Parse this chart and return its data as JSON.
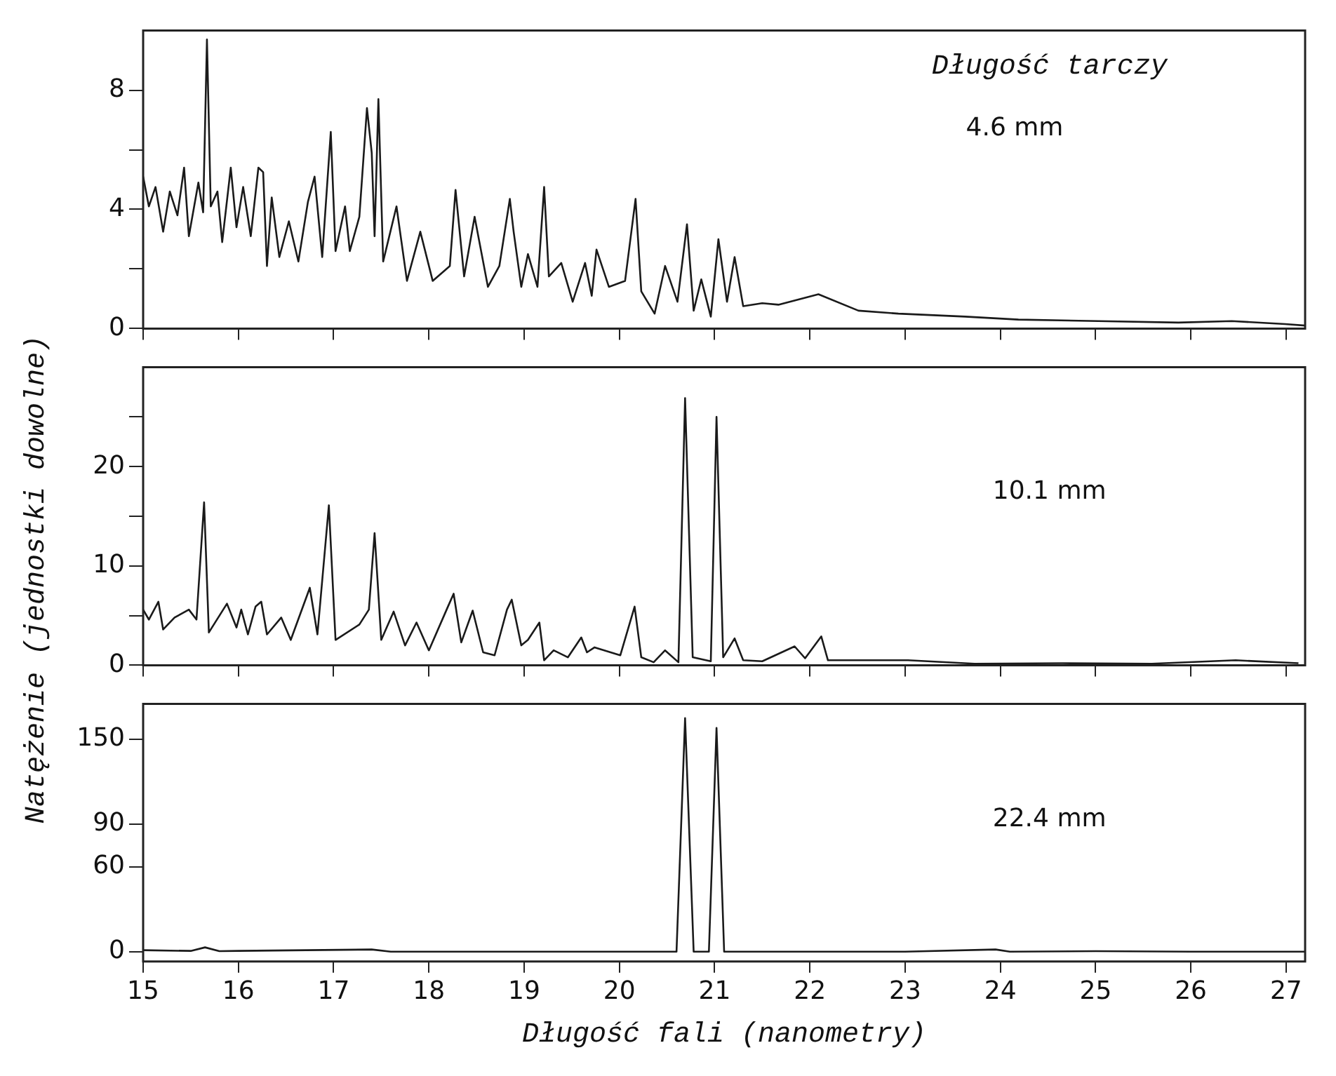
{
  "chart_data": [
    {
      "type": "line",
      "ylabel": "Natężenie (jednostki dowolne)",
      "annotations": [
        "Długość tarczy",
        "4.6 mm"
      ],
      "color": "#1a1a1a",
      "marker": "none",
      "grid": false,
      "tick_labels": "y",
      "xlim": [
        15,
        27.2
      ],
      "xticks": [
        15,
        16,
        17,
        18,
        19,
        20,
        21,
        22,
        23,
        24,
        25,
        26,
        27
      ],
      "ylim": [
        0,
        10
      ],
      "yticks": [
        0,
        {
          "value": 2,
          "label": null
        },
        4,
        {
          "value": 6,
          "label": null
        },
        8
      ],
      "x": [
        15.0,
        15.06,
        15.13,
        15.21,
        15.28,
        15.36,
        15.43,
        15.48,
        15.58,
        15.63,
        15.67,
        15.71,
        15.78,
        15.83,
        15.92,
        15.98,
        16.05,
        16.13,
        16.21,
        16.26,
        16.3,
        16.35,
        16.43,
        16.53,
        16.63,
        16.73,
        16.8,
        16.88,
        16.97,
        17.02,
        17.12,
        17.17,
        17.27,
        17.35,
        17.4,
        17.43,
        17.47,
        17.52,
        17.66,
        17.77,
        17.91,
        18.04,
        18.22,
        18.28,
        18.37,
        18.48,
        18.62,
        18.74,
        18.85,
        18.89,
        18.97,
        19.04,
        19.14,
        19.21,
        19.26,
        19.39,
        19.51,
        19.64,
        19.71,
        19.76,
        19.89,
        20.06,
        20.17,
        20.23,
        20.37,
        20.48,
        20.61,
        20.71,
        20.78,
        20.86,
        20.96,
        21.04,
        21.13,
        21.21,
        21.3,
        21.5,
        21.67,
        22.09,
        22.51,
        22.93,
        23.63,
        24.19,
        25.03,
        25.87,
        26.43,
        26.99,
        27.2
      ],
      "values": [
        5.1,
        4.1,
        4.75,
        3.25,
        4.6,
        3.8,
        5.4,
        3.1,
        4.9,
        3.9,
        9.7,
        4.1,
        4.6,
        2.9,
        5.4,
        3.4,
        4.75,
        3.1,
        5.4,
        5.25,
        2.1,
        4.4,
        2.4,
        3.6,
        2.25,
        4.25,
        5.1,
        2.4,
        6.6,
        2.6,
        4.1,
        2.6,
        3.75,
        7.4,
        5.9,
        3.1,
        7.7,
        2.25,
        4.1,
        1.6,
        3.25,
        1.6,
        2.1,
        4.65,
        1.75,
        3.75,
        1.4,
        2.1,
        4.35,
        3.25,
        1.4,
        2.5,
        1.4,
        4.75,
        1.75,
        2.2,
        0.9,
        2.2,
        1.1,
        2.65,
        1.4,
        1.6,
        4.35,
        1.25,
        0.5,
        2.1,
        0.9,
        3.5,
        0.6,
        1.65,
        0.4,
        3.0,
        0.9,
        2.4,
        0.75,
        0.85,
        0.8,
        1.15,
        0.6,
        0.5,
        0.4,
        0.3,
        0.25,
        0.2,
        0.25,
        0.15,
        0.1
      ]
    },
    {
      "type": "line",
      "annotations": [
        "10.1 mm"
      ],
      "color": "#1a1a1a",
      "marker": "none",
      "grid": false,
      "tick_labels": "y",
      "xlim": [
        15,
        27.2
      ],
      "xticks": [
        15,
        16,
        17,
        18,
        19,
        20,
        21,
        22,
        23,
        24,
        25,
        26,
        27
      ],
      "ylim": [
        0,
        30
      ],
      "yticks": [
        0,
        {
          "value": 5,
          "label": null
        },
        10,
        {
          "value": 15,
          "label": null
        },
        20,
        {
          "value": 25,
          "label": null
        }
      ],
      "x": [
        15.0,
        15.06,
        15.16,
        15.21,
        15.33,
        15.48,
        15.56,
        15.64,
        15.69,
        15.88,
        15.98,
        16.03,
        16.1,
        16.18,
        16.24,
        16.3,
        16.45,
        16.55,
        16.75,
        16.83,
        16.95,
        17.02,
        17.27,
        17.37,
        17.43,
        17.5,
        17.63,
        17.75,
        17.87,
        18.0,
        18.2,
        18.26,
        18.34,
        18.46,
        18.57,
        18.69,
        18.82,
        18.87,
        18.97,
        19.04,
        19.16,
        19.21,
        19.31,
        19.46,
        19.6,
        19.66,
        19.74,
        20.01,
        20.16,
        20.23,
        20.36,
        20.48,
        20.62,
        20.69,
        20.77,
        20.96,
        21.02,
        21.09,
        21.21,
        21.3,
        21.5,
        21.84,
        21.95,
        22.12,
        22.19,
        23.03,
        23.73,
        24.65,
        25.59,
        26.47,
        27.13
      ],
      "values": [
        5.6,
        4.6,
        6.4,
        3.6,
        4.8,
        5.6,
        4.6,
        16.4,
        3.3,
        6.2,
        3.8,
        5.6,
        3.1,
        5.9,
        6.4,
        3.1,
        4.8,
        2.55,
        7.8,
        3.1,
        16.1,
        2.55,
        4.1,
        5.6,
        13.3,
        2.55,
        5.4,
        2.0,
        4.3,
        1.5,
        5.9,
        7.2,
        2.3,
        5.5,
        1.3,
        1.0,
        5.6,
        6.6,
        2.0,
        2.55,
        4.3,
        0.5,
        1.5,
        0.8,
        2.8,
        1.3,
        1.8,
        1.0,
        5.9,
        0.8,
        0.3,
        1.5,
        0.3,
        26.9,
        0.8,
        0.4,
        25.0,
        0.8,
        2.7,
        0.5,
        0.4,
        1.9,
        0.7,
        2.9,
        0.5,
        0.5,
        0.15,
        0.2,
        0.15,
        0.5,
        0.2
      ]
    },
    {
      "type": "line",
      "xlabel": "Długość fali (nanometry)",
      "annotations": [
        "22.4 mm"
      ],
      "color": "#1a1a1a",
      "marker": "none",
      "grid": false,
      "xlim": [
        15,
        27.2
      ],
      "xticks": [
        15,
        16,
        17,
        18,
        19,
        20,
        21,
        22,
        23,
        24,
        25,
        26,
        27
      ],
      "ylim": [
        -7,
        175
      ],
      "yticks": [
        0,
        60,
        90,
        150
      ],
      "x": [
        15.0,
        15.5,
        15.65,
        15.8,
        16.0,
        17.4,
        17.6,
        18.0,
        19.0,
        20.0,
        20.6,
        20.69,
        20.78,
        20.94,
        21.02,
        21.1,
        22.0,
        23.0,
        23.95,
        24.1,
        25.0,
        26.0,
        27.2
      ],
      "values": [
        1,
        0.5,
        3,
        0.3,
        0.5,
        1.5,
        0,
        0,
        0,
        0,
        0,
        165,
        0,
        0,
        158,
        0,
        0,
        0,
        1.5,
        0,
        0.3,
        0,
        0
      ]
    }
  ]
}
